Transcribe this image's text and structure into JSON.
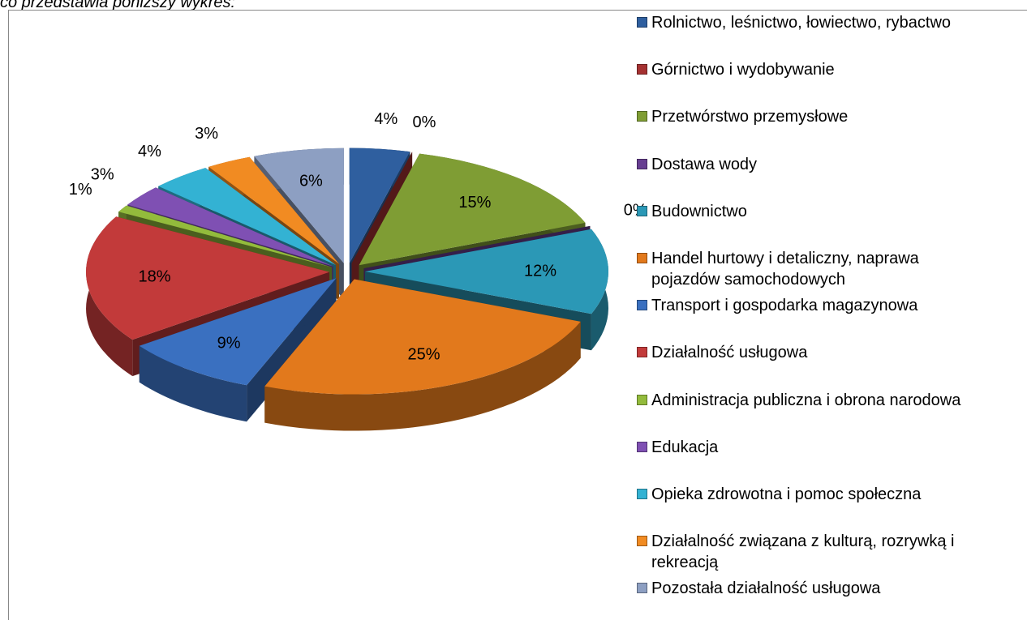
{
  "caption": "co przedstawia poniższy wykres:",
  "chart_data": {
    "type": "pie3d",
    "categories": [
      "Rolnictwo, leśnictwo, łowiectwo, rybactwo",
      "Górnictwo i wydobywanie",
      "Przetwórstwo przemysłowe",
      "Dostawa wody",
      "Budownictwo",
      "Handel hurtowy i detaliczny, naprawa pojazdów samochodowych",
      "Transport i gospodarka magazynowa",
      "Działalność usługowa",
      "Administracja publiczna i obrona narodowa",
      "Edukacja",
      "Opieka zdrowotna i pomoc społeczna",
      "Działalność związana z kulturą, rozrywką i rekreacją",
      "Pozostała działalność usługowa"
    ],
    "values": [
      4,
      0,
      15,
      0,
      12,
      25,
      9,
      18,
      1,
      3,
      4,
      3,
      6
    ],
    "value_labels": [
      "4%",
      "0%",
      "15%",
      "0%",
      "12%",
      "25%",
      "9%",
      "18%",
      "1%",
      "3%",
      "4%",
      "3%",
      "6%"
    ],
    "colors": [
      "#2f5f9f",
      "#a53232",
      "#7f9d34",
      "#673e91",
      "#2b98b6",
      "#e2791c",
      "#3a70c0",
      "#c23a3a",
      "#93bb3c",
      "#7f50b3",
      "#33b2d3",
      "#f18b22",
      "#8d9fc2"
    ],
    "legend": "right"
  }
}
